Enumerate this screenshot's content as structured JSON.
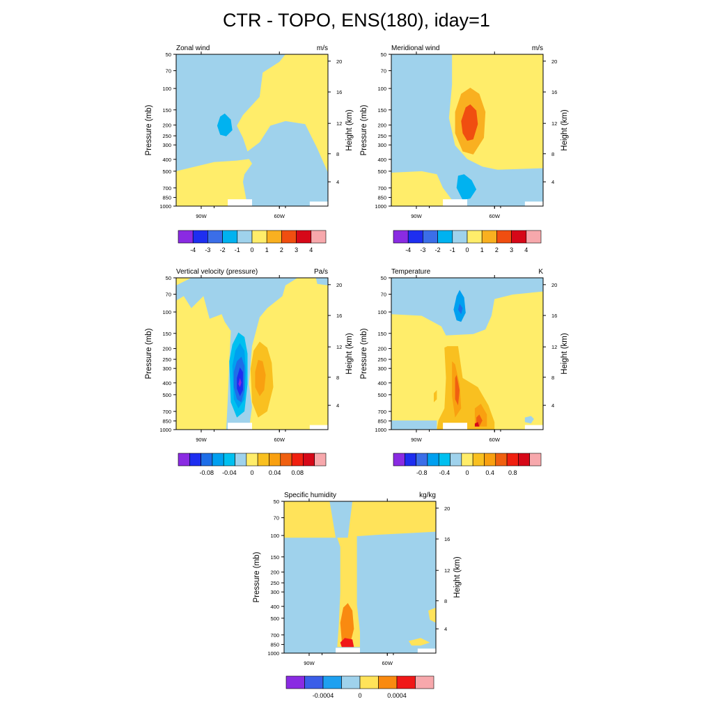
{
  "title": "CTR - TOPO, ENS(180), iday=1",
  "common": {
    "pressure_ticks": [
      "50",
      "70",
      "100",
      "150",
      "200",
      "250",
      "300",
      "400",
      "500",
      "700",
      "850",
      "1000"
    ],
    "height_ticks": [
      "20",
      "16",
      "12",
      "8",
      "4"
    ],
    "x_ticks": [
      "90W",
      "60W"
    ],
    "left_axis_label": "Pressure (mb)",
    "right_axis_label": "Height (km)"
  },
  "chart_data": [
    {
      "type": "heatmap",
      "title": "Zonal wind",
      "units": "m/s",
      "xlabel": "",
      "ylabel": "Pressure (mb)",
      "ylabel_right": "Height (km)",
      "colorbar": {
        "colors": [
          "#8A2BE2",
          "#1E2EF0",
          "#3B6EE8",
          "#00B2F0",
          "#9FD2EC",
          "#FFED6A",
          "#F9B020",
          "#F04E10",
          "#D60818",
          "#F7A8AC"
        ],
        "labels": [
          "-4",
          "-3",
          "-2",
          "-1",
          "0",
          "1",
          "2",
          "3",
          "4"
        ]
      },
      "field_description": {
        "negative_region": "west, upper-mid troposphere; min about -1.5 near 90W at 200 mb",
        "positive_region": "east above 300 mb and west below 500 mb, 0 to 1"
      }
    },
    {
      "type": "heatmap",
      "title": "Meridional wind",
      "units": "m/s",
      "xlabel": "",
      "ylabel": "Pressure (mb)",
      "ylabel_right": "Height (km)",
      "colorbar": {
        "colors": [
          "#8A2BE2",
          "#1E2EF0",
          "#3B6EE8",
          "#00B2F0",
          "#9FD2EC",
          "#FFED6A",
          "#F9B020",
          "#F04E10",
          "#D60818",
          "#F7A8AC"
        ],
        "labels": [
          "-4",
          "-3",
          "-2",
          "-1",
          "0",
          "1",
          "2",
          "3",
          "4"
        ]
      },
      "field_description": {
        "max": "about 3 near 80W at 200 mb",
        "min": "about -1 near 80W at 700-850 mb"
      }
    },
    {
      "type": "heatmap",
      "title": "Vertical velocity (pressure)",
      "units": "Pa/s",
      "xlabel": "",
      "ylabel": "Pressure (mb)",
      "ylabel_right": "Height (km)",
      "colorbar": {
        "colors": [
          "#8A2BE2",
          "#1E2EF0",
          "#1E6EE8",
          "#00A0F0",
          "#00C0F0",
          "#9FD2EC",
          "#FFED6A",
          "#F9C020",
          "#F9A010",
          "#F06010",
          "#F02010",
          "#D60818",
          "#F7A8AC"
        ],
        "labels": [
          "-0.08",
          "-0.04",
          "0",
          "0.04",
          "0.08"
        ]
      },
      "field_description": {
        "min": "about -0.1 near 82W at 400-500 mb",
        "max": "about 0.06 near 76W at 400 mb"
      }
    },
    {
      "type": "heatmap",
      "title": "Temperature",
      "units": "K",
      "xlabel": "",
      "ylabel": "Pressure (mb)",
      "ylabel_right": "Height (km)",
      "colorbar": {
        "colors": [
          "#8A2BE2",
          "#1E2EF0",
          "#3B6EE8",
          "#00A0F0",
          "#00C0F0",
          "#9FD2EC",
          "#FFED6A",
          "#F9C020",
          "#F9A010",
          "#F06010",
          "#F02010",
          "#D60818",
          "#F7A8AC"
        ],
        "labels": [
          "-0.8",
          "-0.4",
          "0",
          "0.4",
          "0.8"
        ]
      },
      "field_description": {
        "min": "about -0.6 near 75W at 100 mb",
        "max": "about 1.0 near 70W at 850 mb"
      }
    },
    {
      "type": "heatmap",
      "title": "Specific humidity",
      "units": "kg/kg",
      "xlabel": "",
      "ylabel": "Pressure (mb)",
      "ylabel_right": "Height (km)",
      "colorbar": {
        "colors": [
          "#8A2BE2",
          "#3B5EE8",
          "#1EA0F0",
          "#9FD2EC",
          "#FFE35A",
          "#F98A10",
          "#F01818",
          "#F7A8AC"
        ],
        "labels": [
          "-0.0004",
          "0",
          "0.0004"
        ]
      },
      "field_description": {
        "max": "about 0.0008 near 80W at 850 mb",
        "positive_column": "roughly 84W-76W from surface to 100 mb"
      }
    }
  ]
}
